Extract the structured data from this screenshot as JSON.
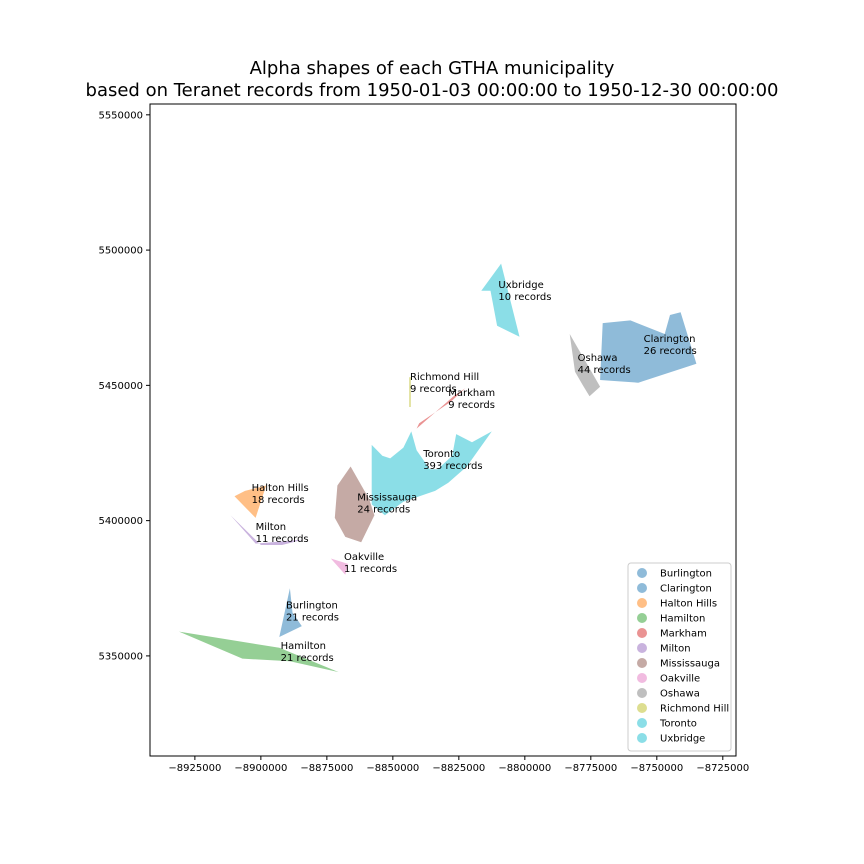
{
  "title_line1": "Alpha shapes of each GTHA municipality",
  "title_line2": "based on Teranet records from 1950-01-03 00:00:00 to 1950-12-30 00:00:00",
  "chart_data": {
    "type": "map",
    "xlim": [
      -8942000,
      -8720000
    ],
    "ylim": [
      5313000,
      5554000
    ],
    "x_ticks": [
      -8925000,
      -8900000,
      -8875000,
      -8850000,
      -8825000,
      -8800000,
      -8775000,
      -8750000,
      -8725000
    ],
    "x_tick_labels": [
      "−8925000",
      "−8900000",
      "−8875000",
      "−8850000",
      "−8825000",
      "−8800000",
      "−8775000",
      "−8750000",
      "−8725000"
    ],
    "y_ticks": [
      5350000,
      5400000,
      5450000,
      5500000,
      5550000
    ],
    "y_tick_labels": [
      "5350000",
      "5400000",
      "5450000",
      "5500000",
      "5550000"
    ],
    "legend_position": "lower-right",
    "municipalities": [
      {
        "name": "Burlington",
        "color": "#1f77b4",
        "label_line1": "Burlington",
        "label_line2": "21 records",
        "label_x": -8890500,
        "label_y": 5367500,
        "polygon": [
          [
            -8889000,
            5375000
          ],
          [
            -8888000,
            5366000
          ],
          [
            -8884500,
            5361000
          ],
          [
            -8893000,
            5357000
          ]
        ]
      },
      {
        "name": "Clarington",
        "color": "#1f77b4",
        "label_line1": "Clarington",
        "label_line2": "26 records",
        "label_x": -8755000,
        "label_y": 5466000,
        "polygon": [
          [
            -8760000,
            5474000
          ],
          [
            -8747000,
            5469000
          ],
          [
            -8745000,
            5476000
          ],
          [
            -8741000,
            5477000
          ],
          [
            -8735000,
            5458000
          ],
          [
            -8757000,
            5451000
          ],
          [
            -8771500,
            5452000
          ],
          [
            -8770500,
            5473000
          ]
        ]
      },
      {
        "name": "Halton Hills",
        "color": "#ff7f0e",
        "label_line1": "Halton Hills",
        "label_line2": "18 records",
        "label_x": -8903500,
        "label_y": 5411000,
        "polygon": [
          [
            -8906000,
            5411000
          ],
          [
            -8898000,
            5413000
          ],
          [
            -8902000,
            5401000
          ],
          [
            -8910000,
            5409000
          ]
        ]
      },
      {
        "name": "Hamilton",
        "color": "#2ca02c",
        "label_line1": "Hamilton",
        "label_line2": "21 records",
        "label_x": -8892500,
        "label_y": 5352500,
        "polygon": [
          [
            -8931000,
            5359000
          ],
          [
            -8893000,
            5353000
          ],
          [
            -8870500,
            5344000
          ],
          [
            -8889000,
            5348000
          ],
          [
            -8907000,
            5349000
          ]
        ]
      },
      {
        "name": "Markham",
        "color": "#d62728",
        "label_line1": "Markham",
        "label_line2": "9 records",
        "label_x": -8829000,
        "label_y": 5446000,
        "polygon": [
          [
            -8841000,
            5434000
          ],
          [
            -8827000,
            5446000
          ],
          [
            -8822500,
            5449000
          ],
          [
            -8828000,
            5444000
          ],
          [
            -8840000,
            5436000
          ]
        ]
      },
      {
        "name": "Milton",
        "color": "#9467bd",
        "label_line1": "Milton",
        "label_line2": "11 records",
        "label_x": -8902000,
        "label_y": 5396500,
        "polygon": [
          [
            -8911500,
            5402000
          ],
          [
            -8902000,
            5391500
          ],
          [
            -8884000,
            5393000
          ],
          [
            -8892000,
            5391000
          ],
          [
            -8900000,
            5391000
          ]
        ]
      },
      {
        "name": "Mississauga",
        "color": "#8c564b",
        "label_line1": "Mississauga",
        "label_line2": "24 records",
        "label_x": -8863500,
        "label_y": 5407500,
        "polygon": [
          [
            -8866000,
            5420000
          ],
          [
            -8859000,
            5408000
          ],
          [
            -8857000,
            5402000
          ],
          [
            -8862000,
            5392000
          ],
          [
            -8868000,
            5394000
          ],
          [
            -8872000,
            5401000
          ],
          [
            -8871000,
            5413000
          ]
        ]
      },
      {
        "name": "Oakville",
        "color": "#e377c2",
        "label_line1": "Oakville",
        "label_line2": "11 records",
        "label_x": -8868500,
        "label_y": 5385500,
        "polygon": [
          [
            -8873500,
            5386000
          ],
          [
            -8868000,
            5380000
          ],
          [
            -8867000,
            5384000
          ]
        ]
      },
      {
        "name": "Oshawa",
        "color": "#7f7f7f",
        "label_line1": "Oshawa",
        "label_line2": "44 records",
        "label_x": -8780000,
        "label_y": 5459000,
        "polygon": [
          [
            -8783000,
            5469000
          ],
          [
            -8771500,
            5449500
          ],
          [
            -8775500,
            5446000
          ],
          [
            -8778000,
            5450000
          ],
          [
            -8781000,
            5455000
          ]
        ]
      },
      {
        "name": "Richmond Hill",
        "color": "#bcbd22",
        "label_line1": "Richmond Hill",
        "label_line2": "9 records",
        "label_x": -8843500,
        "label_y": 5452000,
        "polygon": [
          [
            -8843800,
            5453000
          ],
          [
            -8843200,
            5453000
          ],
          [
            -8843200,
            5442000
          ],
          [
            -8843800,
            5442000
          ]
        ]
      },
      {
        "name": "Toronto",
        "color": "#17becf",
        "label_line1": "Toronto",
        "label_line2": "393 records",
        "label_x": -8838500,
        "label_y": 5423500,
        "polygon": [
          [
            -8858000,
            5428000
          ],
          [
            -8854000,
            5424000
          ],
          [
            -8851000,
            5423000
          ],
          [
            -8846000,
            5427000
          ],
          [
            -8843000,
            5433000
          ],
          [
            -8841000,
            5426000
          ],
          [
            -8836000,
            5419000
          ],
          [
            -8833000,
            5419000
          ],
          [
            -8827500,
            5424000
          ],
          [
            -8826000,
            5432000
          ],
          [
            -8820000,
            5429000
          ],
          [
            -8812500,
            5433000
          ],
          [
            -8822000,
            5420000
          ],
          [
            -8829000,
            5414000
          ],
          [
            -8834000,
            5411000
          ],
          [
            -8846000,
            5407000
          ],
          [
            -8853000,
            5402000
          ],
          [
            -8858000,
            5406000
          ]
        ]
      },
      {
        "name": "Uxbridge",
        "color": "#17becf",
        "label_line1": "Uxbridge",
        "label_line2": "10 records",
        "label_x": -8810000,
        "label_y": 5486000,
        "polygon": [
          [
            -8809000,
            5495000
          ],
          [
            -8802000,
            5468000
          ],
          [
            -8810500,
            5472000
          ],
          [
            -8813000,
            5485000
          ],
          [
            -8816500,
            5485000
          ]
        ]
      }
    ]
  }
}
